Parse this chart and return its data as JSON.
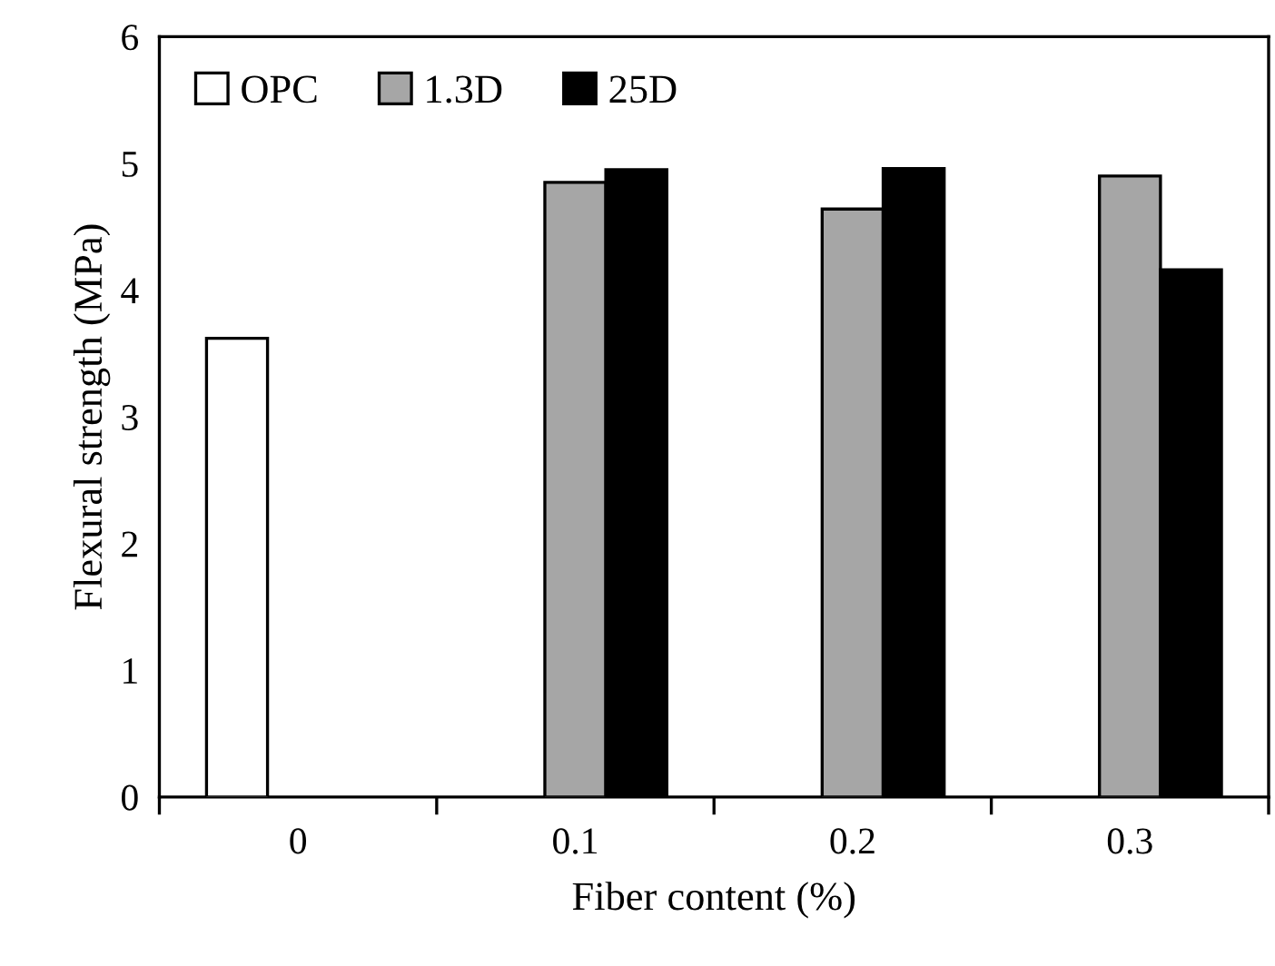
{
  "chart_data": {
    "type": "bar",
    "xlabel": "Fiber content (%)",
    "ylabel": "Flexural strength (MPa)",
    "categories": [
      "0",
      "0.1",
      "0.2",
      "0.3"
    ],
    "series": [
      {
        "name": "OPC",
        "color": "#ffffff",
        "values": [
          3.62,
          null,
          null,
          null
        ]
      },
      {
        "name": "1.3D",
        "color": "#a6a6a6",
        "values": [
          null,
          4.85,
          4.64,
          4.9
        ]
      },
      {
        "name": "25D",
        "color": "#000000",
        "values": [
          null,
          4.95,
          4.96,
          4.16
        ]
      }
    ],
    "ylim": [
      0,
      6
    ],
    "yticks": [
      0,
      1,
      2,
      3,
      4,
      5,
      6
    ],
    "grid": false,
    "legend": "top left"
  }
}
